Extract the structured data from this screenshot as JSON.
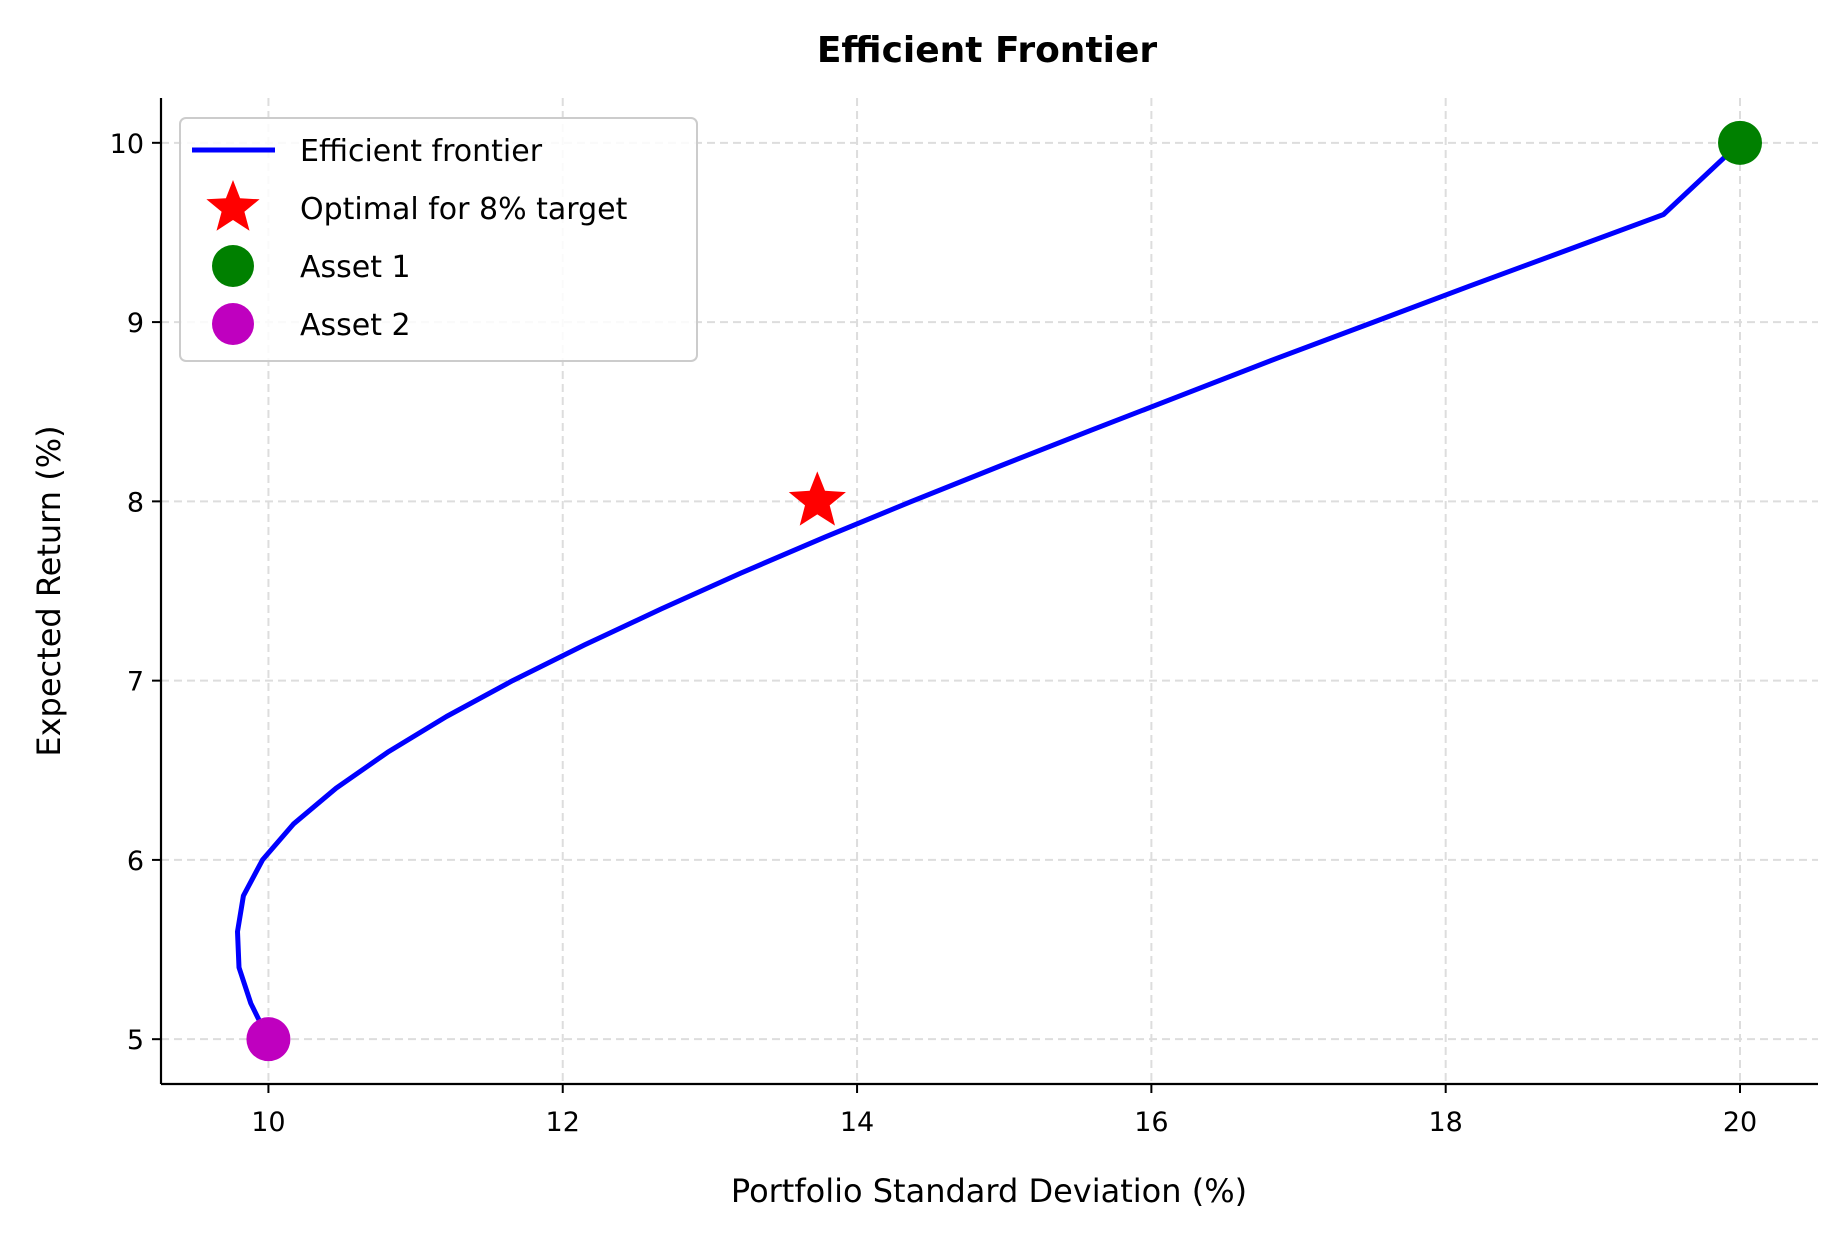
{
  "chart_data": {
    "type": "line",
    "title": "Efficient Frontier",
    "xlabel": "Portfolio Standard Deviation (%)",
    "ylabel": "Expected Return (%)",
    "xlim": [
      9.27,
      20.53
    ],
    "ylim": [
      4.75,
      10.25
    ],
    "xticks": [
      10,
      12,
      14,
      16,
      18,
      20
    ],
    "yticks": [
      5,
      6,
      7,
      8,
      9,
      10
    ],
    "xtick_labels": [
      "10",
      "12",
      "14",
      "16",
      "18",
      "20"
    ],
    "ytick_labels": [
      "5",
      "6",
      "7",
      "8",
      "9",
      "10"
    ],
    "grid": true,
    "legend_position": "upper-left",
    "series": [
      {
        "name": "Efficient frontier",
        "type": "line",
        "color": "#0000ff",
        "x": [
          10.0,
          9.88,
          9.8,
          9.79,
          9.83,
          9.96,
          10.17,
          10.46,
          10.81,
          11.21,
          11.66,
          12.15,
          12.67,
          13.21,
          13.78,
          14.37,
          14.98,
          15.6,
          16.23,
          16.86,
          17.51,
          18.16,
          18.82,
          19.48,
          20.0
        ],
        "y": [
          5.0,
          5.2,
          5.4,
          5.6,
          5.8,
          6.0,
          6.2,
          6.4,
          6.6,
          6.8,
          7.0,
          7.2,
          7.4,
          7.6,
          7.8,
          8.0,
          8.2,
          8.4,
          8.6,
          8.8,
          9.0,
          9.2,
          9.4,
          9.6,
          10.0
        ]
      },
      {
        "name": "Optimal for 8% target",
        "type": "marker",
        "marker": "star",
        "color": "#ff0000",
        "x": [
          13.73
        ],
        "y": [
          8.0
        ]
      },
      {
        "name": "Asset 1",
        "type": "marker",
        "marker": "circle",
        "color": "#008000",
        "x": [
          20.0
        ],
        "y": [
          10.0
        ]
      },
      {
        "name": "Asset 2",
        "type": "marker",
        "marker": "circle",
        "color": "#bf00bf",
        "x": [
          10.0
        ],
        "y": [
          5.0
        ]
      }
    ]
  }
}
